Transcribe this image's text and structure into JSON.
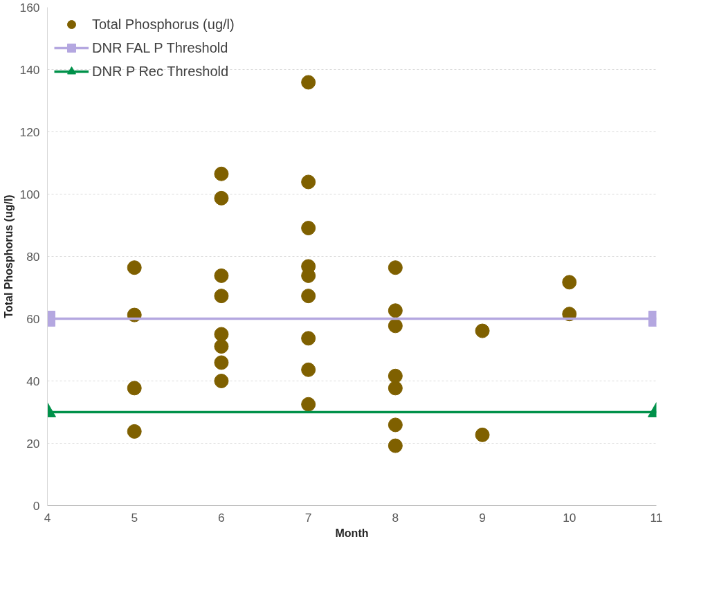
{
  "chart_data": {
    "type": "scatter",
    "xlabel": "Month",
    "ylabel": "Total Phosphorus (ug/l)",
    "xlim": [
      4,
      11
    ],
    "xticks": [
      4,
      5,
      6,
      7,
      8,
      9,
      10,
      11
    ],
    "ylim": [
      0,
      160
    ],
    "yticks": [
      0,
      20,
      40,
      60,
      80,
      100,
      120,
      140,
      160
    ],
    "grid": "y",
    "legend": "top left",
    "series": [
      {
        "name": "Total Phosphorus (ug/l)",
        "type": "scatter",
        "marker": "circle",
        "color": "#7f6000",
        "x": [
          5,
          5,
          5,
          5,
          6,
          6,
          6,
          6,
          6,
          6,
          6,
          6,
          7,
          7,
          7,
          7,
          7,
          7,
          7,
          7,
          7,
          8,
          8,
          8,
          8,
          8,
          8,
          8,
          9,
          9,
          10,
          10
        ],
        "values": [
          76.4,
          61.2,
          37.7,
          23.8,
          106.5,
          98.7,
          73.8,
          67.3,
          55.0,
          51.1,
          45.9,
          40.0,
          135.9,
          103.9,
          89.1,
          76.8,
          73.8,
          67.3,
          53.7,
          43.6,
          32.5,
          76.4,
          62.6,
          57.7,
          41.6,
          37.7,
          25.9,
          19.2,
          56.1,
          22.7,
          71.7,
          61.5
        ]
      },
      {
        "name": "DNR FAL P Threshold",
        "type": "line",
        "marker": "square",
        "color": "#b4a7e0",
        "x": [
          4,
          11
        ],
        "values": [
          60,
          60
        ]
      },
      {
        "name": "DNR P Rec Threshold",
        "type": "line",
        "marker": "triangle",
        "color": "#00914a",
        "x": [
          4,
          11
        ],
        "values": [
          30,
          30
        ]
      }
    ]
  }
}
